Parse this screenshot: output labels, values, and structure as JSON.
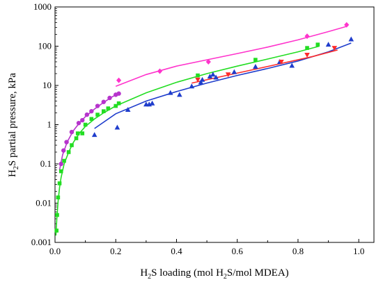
{
  "chart_data": {
    "type": "scatter",
    "title": "",
    "xlabel_parts": [
      "H",
      "2",
      "S loading (mol H",
      "2",
      "S/mol MDEA)"
    ],
    "ylabel_parts": [
      "H",
      "2",
      "S partial pressure, kPa"
    ],
    "xlim": [
      0,
      1.05
    ],
    "ylim": [
      0.001,
      1000
    ],
    "y_scale": "log",
    "grid": false,
    "legend": "none",
    "x_ticks": [
      0.0,
      0.2,
      0.4,
      0.6,
      0.8,
      1.0
    ],
    "x_tick_labels": [
      "0.0",
      "0.2",
      "0.4",
      "0.6",
      "0.8",
      "1.0"
    ],
    "y_ticks": [
      0.001,
      0.01,
      0.1,
      1,
      10,
      100,
      1000
    ],
    "y_tick_labels": [
      "0.001",
      "0.01",
      "0.1",
      "1",
      "10",
      "100",
      "1000"
    ],
    "series": [
      {
        "color": "#ff33cc",
        "marker": "diamond",
        "points": [
          [
            0.21,
            13.5
          ],
          [
            0.345,
            23
          ],
          [
            0.505,
            40
          ],
          [
            0.83,
            180
          ],
          [
            0.96,
            350
          ]
        ],
        "fit": [
          [
            0.2,
            9.5
          ],
          [
            0.3,
            19
          ],
          [
            0.4,
            31
          ],
          [
            0.5,
            45
          ],
          [
            0.6,
            65
          ],
          [
            0.7,
            95
          ],
          [
            0.8,
            145
          ],
          [
            0.9,
            235
          ],
          [
            0.96,
            320
          ]
        ]
      },
      {
        "color": "#b633cc",
        "marker": "circle",
        "points": [
          [
            0.02,
            0.1
          ],
          [
            0.028,
            0.22
          ],
          [
            0.038,
            0.36
          ],
          [
            0.055,
            0.65
          ],
          [
            0.078,
            1.1
          ],
          [
            0.09,
            1.3
          ],
          [
            0.105,
            1.8
          ],
          [
            0.12,
            2.2
          ],
          [
            0.14,
            3
          ],
          [
            0.16,
            3.8
          ],
          [
            0.18,
            4.8
          ],
          [
            0.2,
            5.8
          ],
          [
            0.21,
            6.2
          ]
        ],
        "fit": [
          [
            0.015,
            0.07
          ],
          [
            0.025,
            0.17
          ],
          [
            0.04,
            0.36
          ],
          [
            0.06,
            0.7
          ],
          [
            0.08,
            1.1
          ],
          [
            0.1,
            1.6
          ],
          [
            0.13,
            2.5
          ],
          [
            0.16,
            3.7
          ],
          [
            0.19,
            5.2
          ],
          [
            0.21,
            6.3
          ]
        ]
      },
      {
        "color": "#22dd22",
        "marker": "square",
        "points": [
          [
            0.005,
            0.002
          ],
          [
            0.007,
            0.005
          ],
          [
            0.01,
            0.014
          ],
          [
            0.015,
            0.032
          ],
          [
            0.02,
            0.065
          ],
          [
            0.03,
            0.12
          ],
          [
            0.045,
            0.2
          ],
          [
            0.055,
            0.3
          ],
          [
            0.07,
            0.45
          ],
          [
            0.075,
            0.6
          ],
          [
            0.09,
            0.6
          ],
          [
            0.1,
            1.0
          ],
          [
            0.12,
            1.4
          ],
          [
            0.14,
            1.8
          ],
          [
            0.16,
            2.2
          ],
          [
            0.175,
            2.6
          ],
          [
            0.2,
            3.0
          ],
          [
            0.21,
            3.5
          ],
          [
            0.47,
            18
          ],
          [
            0.66,
            45
          ],
          [
            0.83,
            90
          ],
          [
            0.865,
            110
          ]
        ],
        "fit": [
          [
            0.003,
            0.0015
          ],
          [
            0.006,
            0.004
          ],
          [
            0.01,
            0.011
          ],
          [
            0.015,
            0.025
          ],
          [
            0.02,
            0.045
          ],
          [
            0.03,
            0.1
          ],
          [
            0.045,
            0.2
          ],
          [
            0.06,
            0.35
          ],
          [
            0.08,
            0.6
          ],
          [
            0.1,
            0.9
          ],
          [
            0.13,
            1.4
          ],
          [
            0.16,
            2.0
          ],
          [
            0.2,
            3.0
          ],
          [
            0.3,
            6.5
          ],
          [
            0.4,
            12
          ],
          [
            0.5,
            20
          ],
          [
            0.6,
            31
          ],
          [
            0.7,
            47
          ],
          [
            0.8,
            72
          ],
          [
            0.87,
            100
          ]
        ]
      },
      {
        "color": "#1f3dcc",
        "marker": "triangle",
        "points": [
          [
            0.13,
            0.55
          ],
          [
            0.205,
            0.85
          ],
          [
            0.24,
            2.4
          ],
          [
            0.3,
            3.3
          ],
          [
            0.31,
            3.3
          ],
          [
            0.32,
            3.5
          ],
          [
            0.38,
            6.5
          ],
          [
            0.41,
            5.8
          ],
          [
            0.45,
            9.5
          ],
          [
            0.48,
            12
          ],
          [
            0.485,
            14
          ],
          [
            0.51,
            17
          ],
          [
            0.52,
            19
          ],
          [
            0.53,
            16
          ],
          [
            0.59,
            22
          ],
          [
            0.66,
            30
          ],
          [
            0.74,
            40
          ],
          [
            0.78,
            32
          ],
          [
            0.9,
            110
          ],
          [
            0.975,
            150
          ]
        ],
        "fit": [
          [
            0.13,
            0.8
          ],
          [
            0.2,
            1.9
          ],
          [
            0.3,
            4.0
          ],
          [
            0.4,
            7.0
          ],
          [
            0.5,
            11.5
          ],
          [
            0.6,
            18
          ],
          [
            0.7,
            27
          ],
          [
            0.8,
            42
          ],
          [
            0.9,
            72
          ],
          [
            0.975,
            120
          ]
        ]
      },
      {
        "color": "#ff2a2a",
        "marker": "triangle-down",
        "points": [
          [
            0.47,
            14
          ],
          [
            0.57,
            19
          ],
          [
            0.745,
            40
          ],
          [
            0.83,
            60
          ],
          [
            0.92,
            90
          ]
        ],
        "fit": [
          [
            0.45,
            11.5
          ],
          [
            0.55,
            17
          ],
          [
            0.65,
            25
          ],
          [
            0.75,
            37
          ],
          [
            0.85,
            55
          ],
          [
            0.93,
            80
          ]
        ]
      }
    ]
  }
}
